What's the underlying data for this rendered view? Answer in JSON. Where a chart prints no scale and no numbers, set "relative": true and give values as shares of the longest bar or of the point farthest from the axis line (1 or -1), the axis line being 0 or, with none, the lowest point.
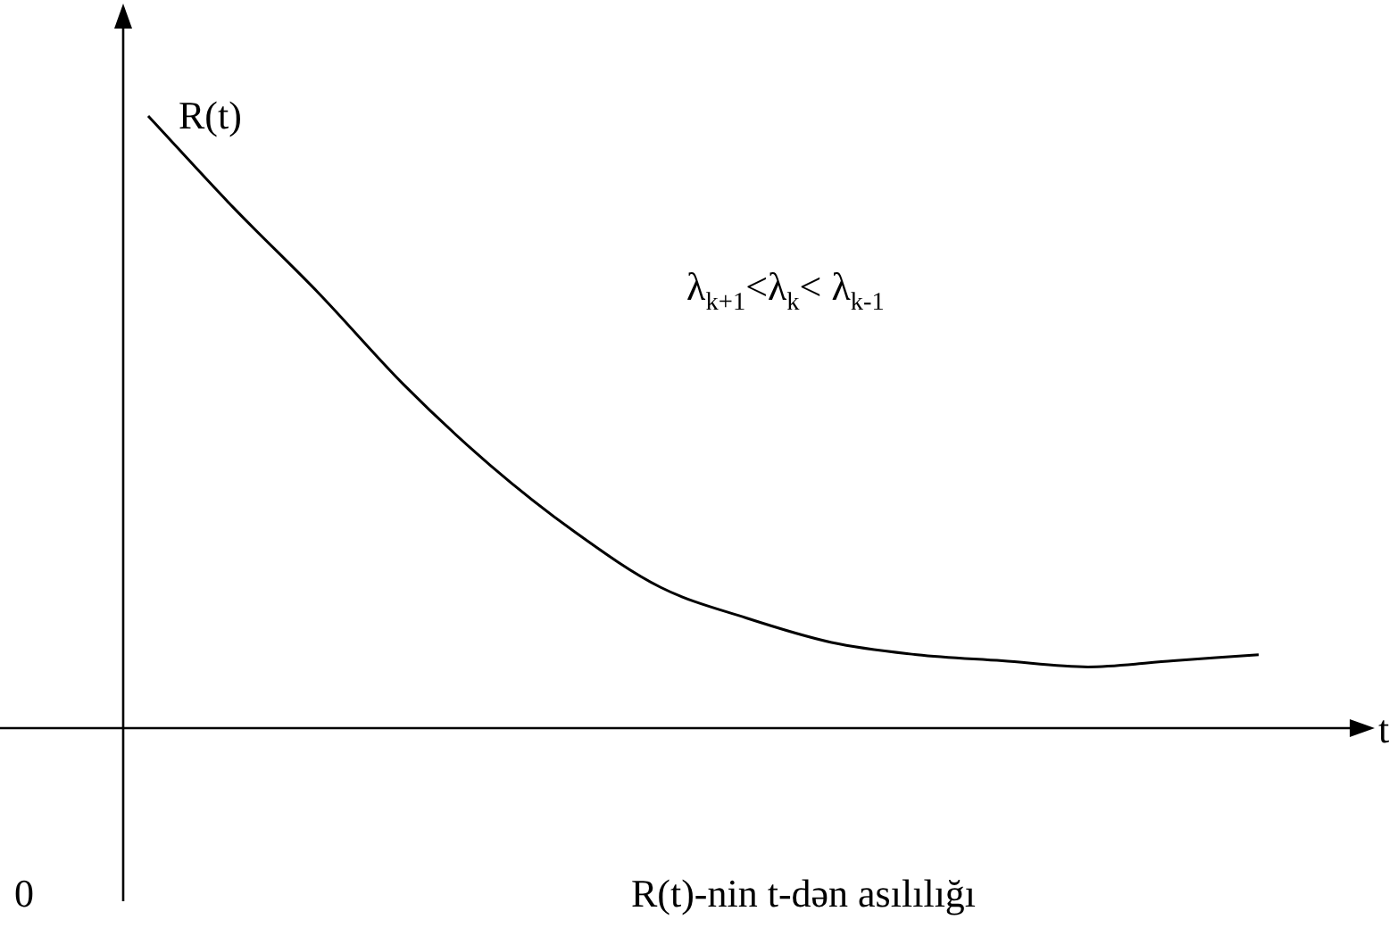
{
  "chart_data": {
    "type": "line",
    "relative": true,
    "xlabel": "t",
    "ylabel": "R(t)",
    "marker": "none",
    "line_style": "solid",
    "categories": [
      null,
      null,
      null,
      null,
      null,
      null,
      null,
      null,
      null,
      null,
      null,
      null,
      null,
      null
    ],
    "series": [
      {
        "color": "#000000",
        "values": [
          1,
          0.85,
          0.71,
          0.56,
          0.43,
          0.32,
          0.23,
          0.18,
          0.14,
          0.12,
          0.11,
          0.1,
          0.11,
          0.12
        ]
      }
    ],
    "annotations": [
      "λ$_{k+1}$<λ$_{k}$< λ$_{k-1}$",
      "R(t)-nin t-dən asılılığı",
      "0"
    ]
  }
}
